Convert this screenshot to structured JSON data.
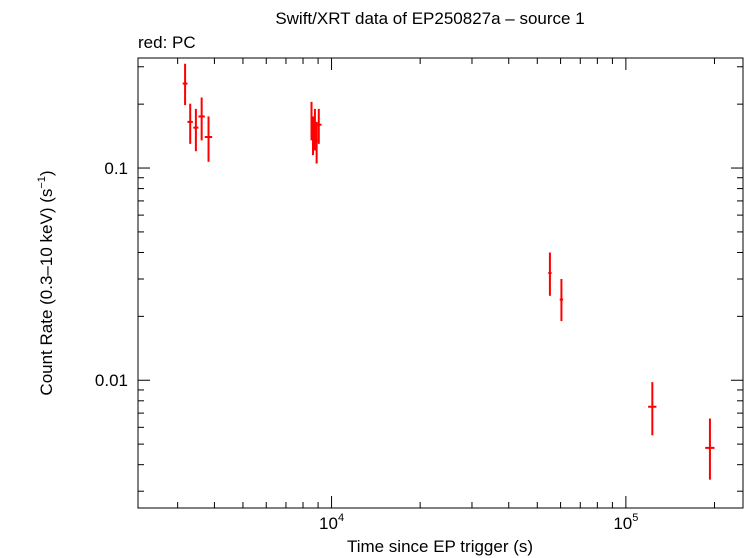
{
  "chart_data": {
    "type": "scatter",
    "title": "Swift/XRT data of EP250827a – source 1",
    "subtitle": "red: PC",
    "xlabel": "Time since EP trigger (s)",
    "ylabel": "Count Rate (0.3–10 keV) (s",
    "ylabel_unit_exp": "−1",
    "ylabel_close": ")",
    "x_scale": "log",
    "y_scale": "log",
    "xlim": [
      2200,
      250000
    ],
    "ylim": [
      0.0025,
      0.33
    ],
    "x_ticks": [
      {
        "value": 10000,
        "base": "10",
        "exp": "4"
      },
      {
        "value": 100000,
        "base": "10",
        "exp": "5"
      }
    ],
    "y_ticks": [
      {
        "value": 0.1,
        "label": "0.1"
      },
      {
        "value": 0.01,
        "label": "0.01"
      }
    ],
    "grid": false,
    "series": [
      {
        "color": "#ff0000",
        "points": [
          {
            "x": 3180,
            "xerr": [
              60,
              60
            ],
            "y": 0.25,
            "yerr": [
              0.052,
              0.06
            ]
          },
          {
            "x": 3310,
            "xerr": [
              70,
              70
            ],
            "y": 0.165,
            "yerr": [
              0.035,
              0.036
            ]
          },
          {
            "x": 3460,
            "xerr": [
              70,
              70
            ],
            "y": 0.155,
            "yerr": [
              0.035,
              0.035
            ]
          },
          {
            "x": 3620,
            "xerr": [
              90,
              90
            ],
            "y": 0.175,
            "yerr": [
              0.04,
              0.04
            ]
          },
          {
            "x": 3820,
            "xerr": [
              110,
              110
            ],
            "y": 0.14,
            "yerr": [
              0.033,
              0.035
            ]
          },
          {
            "x": 8550,
            "xerr": [
              60,
              60
            ],
            "y": 0.17,
            "yerr": [
              0.035,
              0.035
            ]
          },
          {
            "x": 8650,
            "xerr": [
              60,
              60
            ],
            "y": 0.145,
            "yerr": [
              0.03,
              0.03
            ]
          },
          {
            "x": 8780,
            "xerr": [
              80,
              80
            ],
            "y": 0.155,
            "yerr": [
              0.034,
              0.035
            ]
          },
          {
            "x": 8900,
            "xerr": [
              80,
              80
            ],
            "y": 0.135,
            "yerr": [
              0.03,
              0.03
            ]
          },
          {
            "x": 9050,
            "xerr": [
              200,
              200
            ],
            "y": 0.16,
            "yerr": [
              0.03,
              0.03
            ]
          },
          {
            "x": 55200,
            "xerr": [
              700,
              700
            ],
            "y": 0.032,
            "yerr": [
              0.007,
              0.008
            ]
          },
          {
            "x": 60400,
            "xerr": [
              800,
              800
            ],
            "y": 0.024,
            "yerr": [
              0.005,
              0.006
            ]
          },
          {
            "x": 123000,
            "xerr": [
              4000,
              4000
            ],
            "y": 0.0075,
            "yerr": [
              0.002,
              0.0023
            ]
          },
          {
            "x": 193000,
            "xerr": [
              7000,
              7000
            ],
            "y": 0.0048,
            "yerr": [
              0.0014,
              0.0018
            ]
          }
        ]
      }
    ]
  }
}
